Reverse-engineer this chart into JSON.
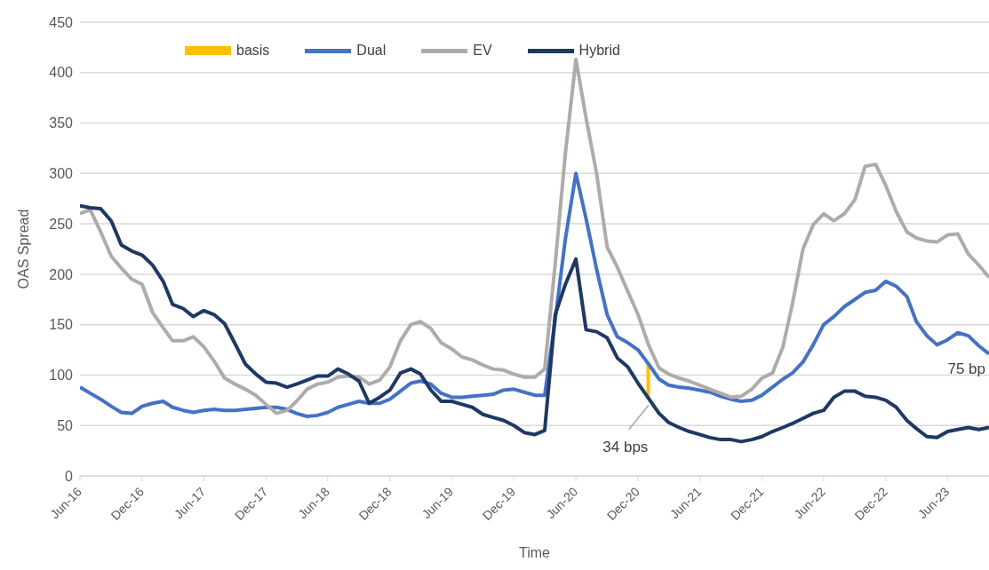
{
  "chart_data": {
    "type": "line",
    "xlabel": "Time",
    "ylabel": "OAS Spread",
    "x": [
      "2016-06",
      "2016-07",
      "2016-08",
      "2016-09",
      "2016-10",
      "2016-11",
      "2016-12",
      "2017-01",
      "2017-02",
      "2017-03",
      "2017-04",
      "2017-05",
      "2017-06",
      "2017-07",
      "2017-08",
      "2017-09",
      "2017-10",
      "2017-11",
      "2017-12",
      "2018-01",
      "2018-02",
      "2018-03",
      "2018-04",
      "2018-05",
      "2018-06",
      "2018-07",
      "2018-08",
      "2018-09",
      "2018-10",
      "2018-11",
      "2018-12",
      "2019-01",
      "2019-02",
      "2019-03",
      "2019-04",
      "2019-05",
      "2019-06",
      "2019-07",
      "2019-08",
      "2019-09",
      "2019-10",
      "2019-11",
      "2019-12",
      "2020-01",
      "2020-02",
      "2020-03",
      "2020-04",
      "2020-05",
      "2020-06",
      "2020-07",
      "2020-08",
      "2020-09",
      "2020-10",
      "2020-11",
      "2020-12",
      "2021-01",
      "2021-02",
      "2021-03",
      "2021-04",
      "2021-05",
      "2021-06",
      "2021-07",
      "2021-08",
      "2021-09",
      "2021-10",
      "2021-11",
      "2021-12",
      "2022-01",
      "2022-02",
      "2022-03",
      "2022-04",
      "2022-05",
      "2022-06",
      "2022-07",
      "2022-08",
      "2022-09",
      "2022-10",
      "2022-11",
      "2022-12",
      "2023-01",
      "2023-02",
      "2023-03",
      "2023-04",
      "2023-05",
      "2023-06",
      "2023-07",
      "2023-08",
      "2023-09",
      "2023-10"
    ],
    "series": [
      {
        "name": "basis",
        "type": "bar",
        "color": "#ffc000",
        "x": [
          "2021-01"
        ],
        "values": [
          34
        ],
        "base": [
          77
        ]
      },
      {
        "name": "Dual",
        "color": "#4472c4",
        "values": [
          88,
          82,
          76,
          69,
          63,
          62,
          69,
          72,
          74,
          68,
          65,
          63,
          65,
          66,
          65,
          65,
          66,
          67,
          68,
          68,
          66,
          62,
          59,
          60,
          63,
          68,
          71,
          74,
          72,
          72,
          76,
          84,
          92,
          94,
          91,
          82,
          78,
          78,
          79,
          80,
          81,
          85,
          86,
          83,
          80,
          80,
          155,
          235,
          300,
          255,
          205,
          160,
          138,
          132,
          125,
          111,
          96,
          90,
          88,
          87,
          85,
          83,
          79,
          76,
          74,
          75,
          80,
          88,
          96,
          102,
          113,
          130,
          150,
          158,
          168,
          175,
          182,
          184,
          193,
          188,
          178,
          153,
          139,
          130,
          135,
          142,
          139,
          129,
          121
        ]
      },
      {
        "name": "EV",
        "color": "#afabab",
        "values": [
          260,
          264,
          242,
          218,
          206,
          195,
          190,
          162,
          147,
          134,
          134,
          138,
          128,
          114,
          97,
          91,
          86,
          80,
          71,
          62,
          65,
          74,
          86,
          91,
          93,
          98,
          99,
          98,
          91,
          95,
          108,
          134,
          150,
          153,
          146,
          132,
          126,
          118,
          115,
          110,
          106,
          105,
          101,
          98,
          98,
          106,
          210,
          320,
          413,
          355,
          300,
          227,
          207,
          183,
          160,
          130,
          107,
          101,
          97,
          94,
          90,
          86,
          82,
          78,
          79,
          86,
          97,
          102,
          128,
          171,
          225,
          249,
          260,
          253,
          260,
          274,
          307,
          309,
          288,
          262,
          242,
          236,
          233,
          232,
          239,
          240,
          220,
          209,
          197
        ]
      },
      {
        "name": "Hybrid",
        "color": "#1f3864",
        "values": [
          268,
          266,
          265,
          253,
          229,
          223,
          219,
          209,
          193,
          170,
          166,
          158,
          164,
          160,
          151,
          131,
          111,
          101,
          93,
          92,
          88,
          91,
          95,
          99,
          99,
          106,
          101,
          94,
          72,
          78,
          85,
          102,
          106,
          101,
          85,
          74,
          74,
          71,
          68,
          61,
          58,
          55,
          50,
          43,
          41,
          45,
          160,
          190,
          215,
          145,
          143,
          137,
          117,
          108,
          92,
          77,
          62,
          53,
          48,
          44,
          41,
          38,
          36,
          36,
          34,
          36,
          39,
          44,
          48,
          52,
          57,
          62,
          65,
          78,
          84,
          84,
          79,
          78,
          75,
          68,
          55,
          47,
          39,
          38,
          44,
          46,
          48,
          46,
          48
        ]
      }
    ],
    "xlim": [
      "2016-06",
      "2023-10"
    ],
    "xticks": [
      {
        "value": "2016-06",
        "label": "Jun-16"
      },
      {
        "value": "2016-12",
        "label": "Dec-16"
      },
      {
        "value": "2017-06",
        "label": "Jun-17"
      },
      {
        "value": "2017-12",
        "label": "Dec-17"
      },
      {
        "value": "2018-06",
        "label": "Jun-18"
      },
      {
        "value": "2018-12",
        "label": "Dec-18"
      },
      {
        "value": "2019-06",
        "label": "Jun-19"
      },
      {
        "value": "2019-12",
        "label": "Dec-19"
      },
      {
        "value": "2020-06",
        "label": "Jun-20"
      },
      {
        "value": "2020-12",
        "label": "Dec-20"
      },
      {
        "value": "2021-06",
        "label": "Jun-21"
      },
      {
        "value": "2021-12",
        "label": "Dec-21"
      },
      {
        "value": "2022-06",
        "label": "Jun-22"
      },
      {
        "value": "2022-12",
        "label": "Dec-22"
      },
      {
        "value": "2023-06",
        "label": "Jun-23"
      }
    ],
    "ylim": [
      0,
      450
    ],
    "yticks": [
      0,
      50,
      100,
      150,
      200,
      250,
      300,
      350,
      400,
      450
    ],
    "grid": "y",
    "legend": "top",
    "marker": "none",
    "line_style": "solid",
    "annotations": [
      {
        "text": "34 bps",
        "x": "2021-01",
        "y": 77
      },
      "75 bp"
    ]
  }
}
